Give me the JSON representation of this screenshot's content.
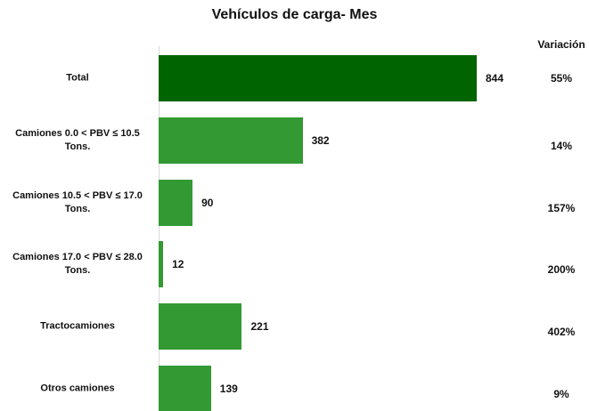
{
  "chart_data": {
    "type": "bar",
    "orientation": "horizontal",
    "title": "Vehículos de carga- Mes",
    "categories": [
      "Total",
      "Camiones 0.0 < PBV ≤ 10.5 Tons.",
      "Camiones 10.5 < PBV ≤ 17.0 Tons.",
      "Camiones 17.0 < PBV ≤ 28.0 Tons.",
      "Tractocamiones",
      "Otros camiones"
    ],
    "values": [
      844,
      382,
      90,
      12,
      221,
      139
    ],
    "colors": [
      "#006400",
      "#339933",
      "#339933",
      "#339933",
      "#339933",
      "#339933"
    ],
    "variation": {
      "title": "Variación",
      "values": [
        55,
        14,
        157,
        200,
        402,
        9
      ],
      "value_labels": [
        "55%",
        "14%",
        "157%",
        "200%",
        "402%",
        "9%"
      ]
    }
  }
}
